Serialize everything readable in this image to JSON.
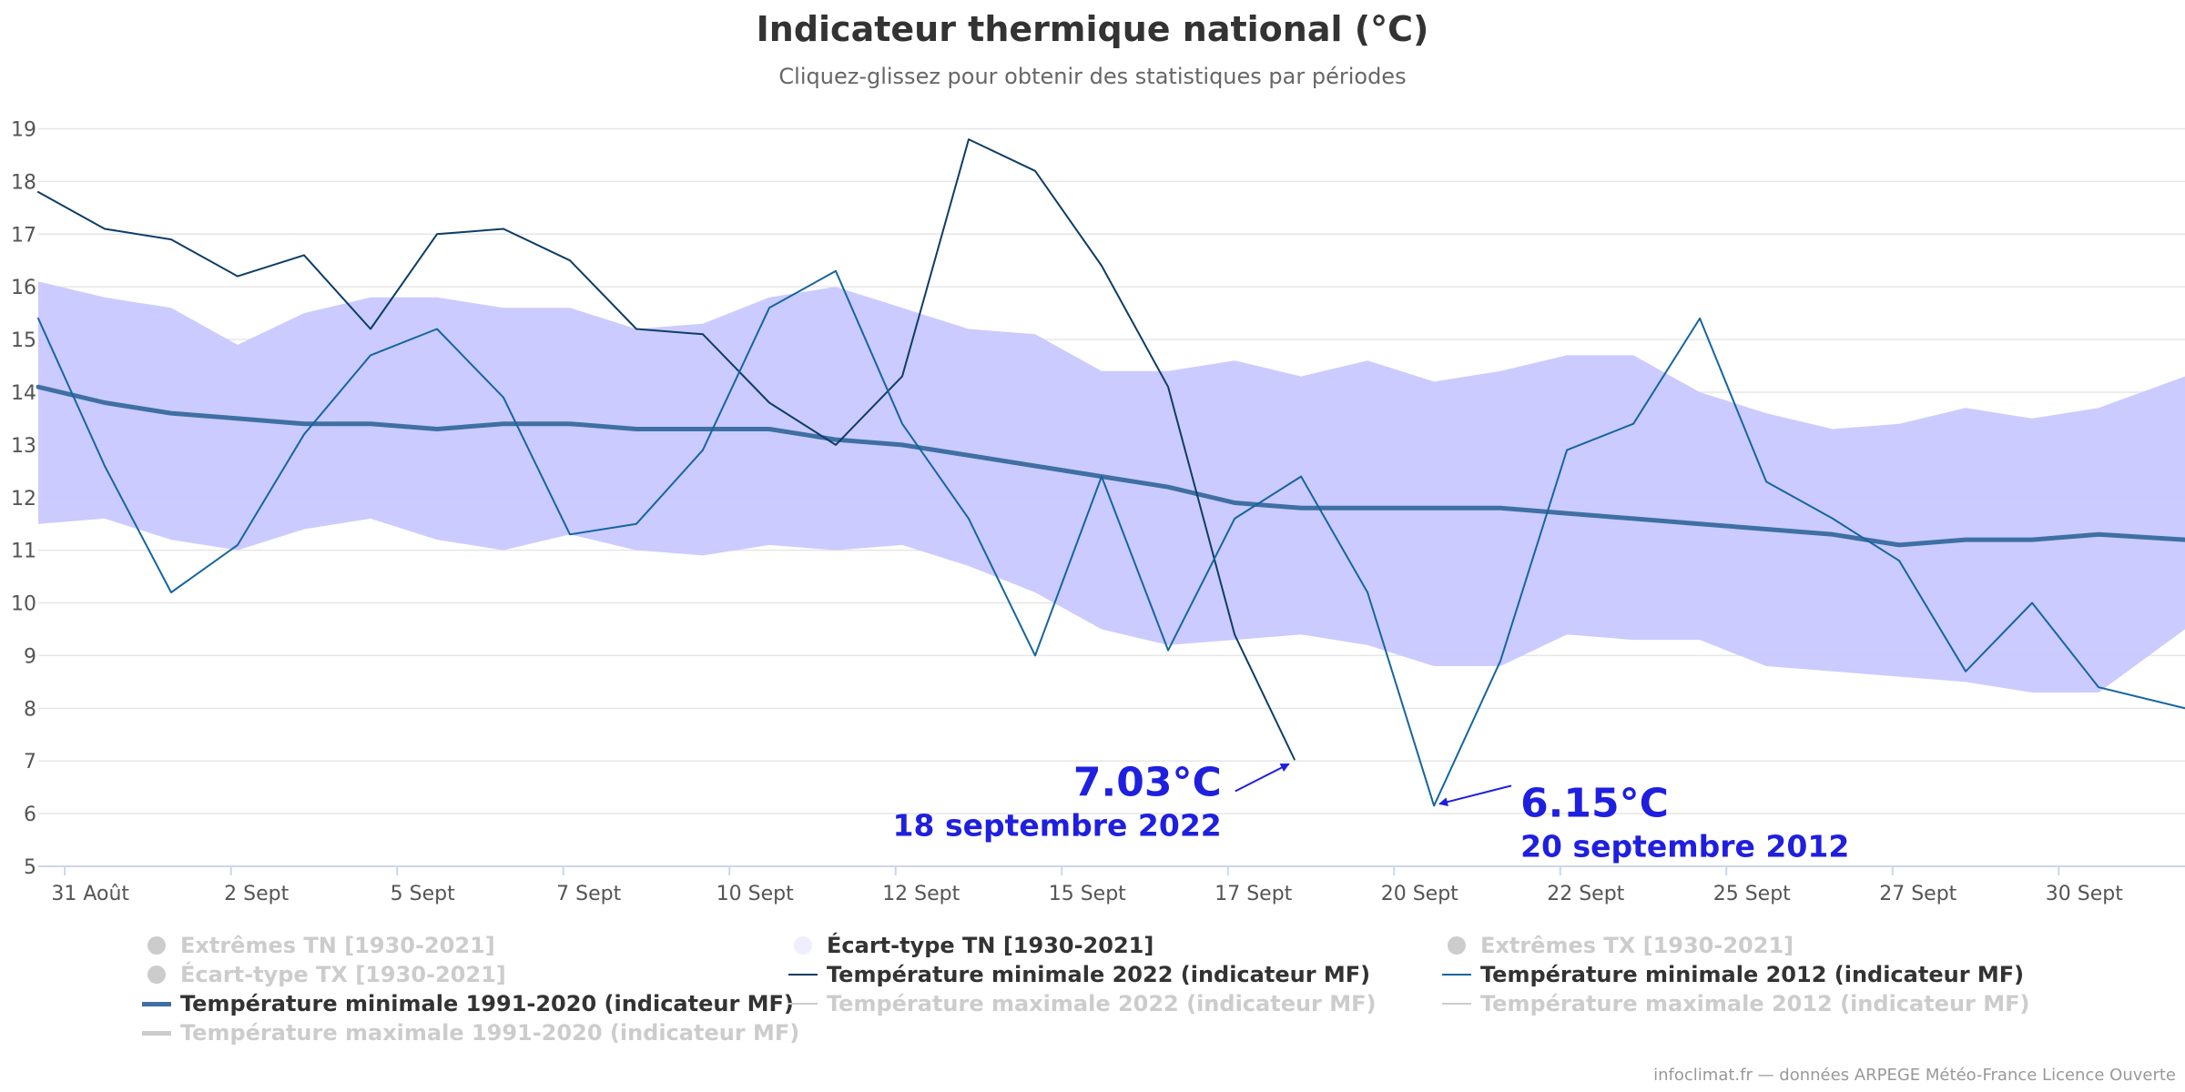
{
  "header": {
    "title": "Indicateur thermique national (°C)",
    "subtitle": "Cliquez-glissez pour obtenir des statistiques par périodes"
  },
  "credits": "infoclimat.fr — données ARPEGE Météo-France Licence Ouverte",
  "legend": [
    {
      "label": "Extrêmes TN [1930-2021]",
      "symbol": "dot",
      "color": "#cccccc",
      "visible": false
    },
    {
      "label": "Écart-type TN [1930-2021]",
      "symbol": "dot",
      "color": "#eeeeff",
      "visible": true
    },
    {
      "label": "Extrêmes TX [1930-2021]",
      "symbol": "dot",
      "color": "#cccccc",
      "visible": false
    },
    {
      "label": "Écart-type TX [1930-2021]",
      "symbol": "dot",
      "color": "#cccccc",
      "visible": false
    },
    {
      "label": "Température minimale 2022 (indicateur MF)",
      "symbol": "line",
      "color": "#0d3d66",
      "visible": true
    },
    {
      "label": "Température minimale 2012 (indicateur MF)",
      "symbol": "line",
      "color": "#1565a0",
      "visible": true
    },
    {
      "label": "Température minimale 1991-2020 (indicateur MF)",
      "symbol": "thickline",
      "color": "#3f6fa3",
      "visible": true
    },
    {
      "label": "Température maximale 2022 (indicateur MF)",
      "symbol": "line",
      "color": "#cccccc",
      "visible": false
    },
    {
      "label": "Température maximale 2012 (indicateur MF)",
      "symbol": "line",
      "color": "#cccccc",
      "visible": false
    },
    {
      "label": "Température maximale 1991-2020 (indicateur MF)",
      "symbol": "thickline",
      "color": "#cccccc",
      "visible": false
    }
  ],
  "annotations": [
    {
      "value": "7.03°C",
      "date": "18 septembre 2022",
      "color": "#1f1fe0",
      "target_day": 18.9,
      "target_value": 7.03
    },
    {
      "value": "6.15°C",
      "date": "20 septembre 2012",
      "color": "#1f1fe0",
      "target_day": 21.0,
      "target_value": 6.15
    }
  ],
  "chart_data": {
    "type": "line",
    "x_tick_labels": [
      "31 Août",
      "2 Sept",
      "5 Sept",
      "7 Sept",
      "10 Sept",
      "12 Sept",
      "15 Sept",
      "17 Sept",
      "20 Sept",
      "22 Sept",
      "25 Sept",
      "27 Sept",
      "30 Sept"
    ],
    "x_tick_days": [
      0.4,
      2.9,
      5.4,
      7.9,
      10.4,
      12.9,
      15.4,
      17.9,
      20.4,
      22.9,
      25.4,
      27.9,
      30.4
    ],
    "x_range_days": [
      0,
      32.3
    ],
    "ylim": [
      5,
      19
    ],
    "yticks": [
      5,
      6,
      7,
      8,
      9,
      10,
      11,
      12,
      13,
      14,
      15,
      16,
      17,
      18,
      19
    ],
    "grid": true,
    "band": {
      "name": "Écart-type TN [1930-2021]",
      "color": "#c8c8ff",
      "x": [
        0,
        1,
        2,
        3,
        4,
        5,
        6,
        7,
        8,
        9,
        10,
        11,
        12,
        13,
        14,
        15,
        16,
        17,
        18,
        19,
        20,
        21,
        22,
        23,
        24,
        25,
        26,
        27,
        28,
        29,
        30,
        31,
        32.3
      ],
      "low": [
        11.5,
        11.6,
        11.2,
        11.0,
        11.4,
        11.6,
        11.2,
        11.0,
        11.3,
        11.0,
        10.9,
        11.1,
        11.0,
        11.1,
        10.7,
        10.2,
        9.5,
        9.2,
        9.3,
        9.4,
        9.2,
        8.8,
        8.8,
        9.4,
        9.3,
        9.3,
        8.8,
        8.7,
        8.6,
        8.5,
        8.3,
        8.3,
        9.5
      ],
      "high": [
        16.1,
        15.8,
        15.6,
        14.9,
        15.5,
        15.8,
        15.8,
        15.6,
        15.6,
        15.2,
        15.3,
        15.8,
        16.0,
        15.6,
        15.2,
        15.1,
        14.4,
        14.4,
        14.6,
        14.3,
        14.6,
        14.2,
        14.4,
        14.7,
        14.7,
        14.0,
        13.6,
        13.3,
        13.4,
        13.7,
        13.5,
        13.7,
        14.3
      ]
    },
    "series": [
      {
        "name": "Température minimale 1991-2020 (indicateur MF)",
        "color": "#3f6fa3",
        "width": 5,
        "x": [
          0,
          1,
          2,
          3,
          4,
          5,
          6,
          7,
          8,
          9,
          10,
          11,
          12,
          13,
          14,
          15,
          16,
          17,
          18,
          19,
          20,
          21,
          22,
          23,
          24,
          25,
          26,
          27,
          28,
          29,
          30,
          31,
          32.3
        ],
        "values": [
          14.1,
          13.8,
          13.6,
          13.5,
          13.4,
          13.4,
          13.3,
          13.4,
          13.4,
          13.3,
          13.3,
          13.3,
          13.1,
          13.0,
          12.8,
          12.6,
          12.4,
          12.2,
          11.9,
          11.8,
          11.8,
          11.8,
          11.8,
          11.7,
          11.6,
          11.5,
          11.4,
          11.3,
          11.1,
          11.2,
          11.2,
          11.3,
          11.2
        ]
      },
      {
        "name": "Température minimale 2022 (indicateur MF)",
        "color": "#0d3d66",
        "width": 2,
        "x": [
          0,
          1,
          2,
          3,
          4,
          5,
          6,
          7,
          8,
          9,
          10,
          11,
          12,
          13,
          14,
          15,
          16,
          17,
          18,
          18.9
        ],
        "values": [
          17.8,
          17.1,
          16.9,
          16.2,
          16.6,
          15.2,
          17.0,
          17.1,
          16.5,
          15.2,
          15.1,
          13.8,
          13.0,
          14.3,
          18.8,
          18.2,
          16.4,
          14.1,
          9.4,
          7.03
        ]
      },
      {
        "name": "Température minimale 2012 (indicateur MF)",
        "color": "#1565a0",
        "width": 2,
        "x": [
          0,
          1,
          2,
          3,
          4,
          5,
          6,
          7,
          8,
          9,
          10,
          11,
          12,
          13,
          14,
          15,
          16,
          17,
          18,
          19,
          20,
          21,
          22,
          23,
          24,
          25,
          26,
          27,
          28,
          29,
          30,
          31,
          32.3
        ],
        "values": [
          15.4,
          12.6,
          10.2,
          11.1,
          13.2,
          14.7,
          15.2,
          13.9,
          11.3,
          11.5,
          12.9,
          15.6,
          16.3,
          13.4,
          11.6,
          9.0,
          12.4,
          9.1,
          11.6,
          12.4,
          10.2,
          6.15,
          8.9,
          12.9,
          13.4,
          15.4,
          12.3,
          11.6,
          10.8,
          8.7,
          10.0,
          8.4,
          8.0
        ]
      }
    ]
  }
}
